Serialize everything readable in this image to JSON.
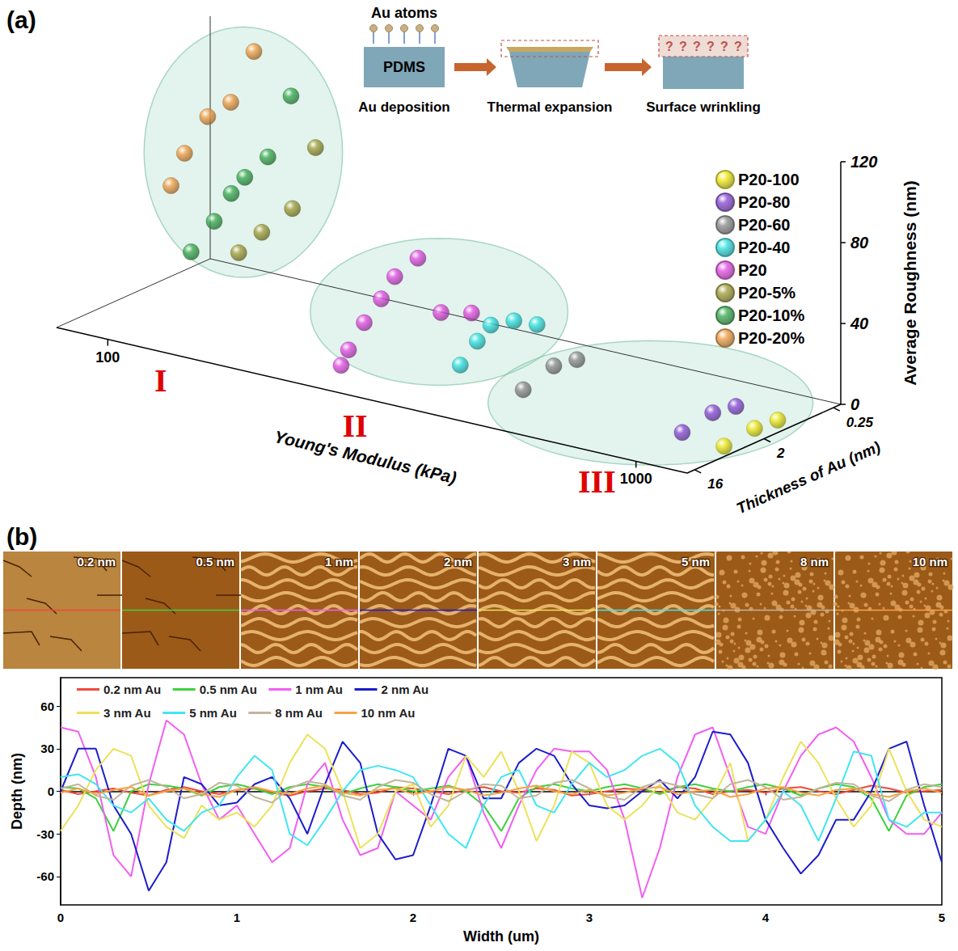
{
  "panel_labels": [
    "(a)",
    "(b)"
  ],
  "schematic": {
    "atoms_label": "Au atoms",
    "substrate_label": "PDMS",
    "steps": [
      "Au deposition",
      "Thermal expansion",
      "Surface wrinkling"
    ],
    "unknown_mark": "?"
  },
  "afm_images": {
    "labels": [
      "0.2 nm",
      "0.5 nm",
      "1 nm",
      "2 nm",
      "3 nm",
      "5 nm",
      "8 nm",
      "10 nm"
    ]
  },
  "chart_data": [
    {
      "type": "scatter3d",
      "x_label": "Young's Modulus (kPa)",
      "y_label": "Thickness of Au (nm)",
      "z_label": "Average Roughness (nm)",
      "log": [
        "x",
        "y"
      ],
      "xlim": [
        80,
        1250
      ],
      "xticks": [
        100,
        1000
      ],
      "ylim": [
        0.2,
        20
      ],
      "yticks": [
        0.25,
        2,
        16
      ],
      "zlim": [
        0,
        120
      ],
      "zticks": [
        0,
        40,
        80,
        120
      ],
      "marker": "sphere",
      "legend": "right",
      "series": [
        {
          "name": "P20-100",
          "color": "#f2ea1c",
          "x": [
            1200,
            1200,
            1200
          ],
          "y": [
            1,
            2,
            5
          ],
          "z": [
            3,
            4,
            2
          ]
        },
        {
          "name": "P20-80",
          "color": "#8e4fd8",
          "x": [
            1000,
            1000,
            1000
          ],
          "y": [
            1,
            2,
            5
          ],
          "z": [
            5,
            7,
            4
          ]
        },
        {
          "name": "P20-60",
          "color": "#8f8f8f",
          "x": [
            500,
            500,
            500
          ],
          "y": [
            1,
            2,
            5
          ],
          "z": [
            10,
            12,
            7
          ]
        },
        {
          "name": "P20-40",
          "color": "#36e3e3",
          "x": [
            380,
            380,
            380,
            380,
            380
          ],
          "y": [
            0.5,
            1,
            2,
            3,
            5
          ],
          "z": [
            15,
            22,
            25,
            20,
            12
          ]
        },
        {
          "name": "P20",
          "color": "#e651e6",
          "x": [
            250,
            250,
            250,
            250,
            250,
            250,
            250,
            250
          ],
          "y": [
            0.2,
            0.5,
            1,
            2,
            3,
            5,
            8,
            10
          ],
          "z": [
            3,
            10,
            42,
            38,
            30,
            22,
            12,
            6
          ]
        },
        {
          "name": "P20-5%",
          "color": "#a5a23f",
          "x": [
            160,
            160,
            160,
            160
          ],
          "y": [
            1,
            2,
            5,
            10
          ],
          "z": [
            85,
            60,
            55,
            50
          ]
        },
        {
          "name": "P20-10%",
          "color": "#3fae55",
          "x": [
            130,
            130,
            130,
            130,
            130,
            130
          ],
          "y": [
            0.5,
            1,
            2,
            3,
            5,
            10
          ],
          "z": [
            100,
            75,
            70,
            65,
            55,
            45
          ]
        },
        {
          "name": "P20-20%",
          "color": "#f3a24a",
          "x": [
            100,
            100,
            100,
            100,
            100
          ],
          "y": [
            0.25,
            0.5,
            1,
            2,
            3
          ],
          "z": [
            110,
            90,
            88,
            75,
            62
          ]
        }
      ],
      "annotations": [
        {
          "text": "I",
          "series": [
            "P20-20%",
            "P20-10%",
            "P20-5%"
          ]
        },
        {
          "text": "II",
          "series": [
            "P20",
            "P20-40"
          ]
        },
        {
          "text": "III",
          "series": [
            "P20-60",
            "P20-80",
            "P20-100"
          ]
        }
      ]
    },
    {
      "type": "line",
      "x_label": "Width (um)",
      "y_label": "Depth (nm)",
      "xlim": [
        0,
        5
      ],
      "xticks": [
        0,
        1,
        2,
        3,
        4,
        5
      ],
      "ylim": [
        -80,
        80
      ],
      "yticks": [
        -60,
        -30,
        0,
        30,
        60
      ],
      "grid": false,
      "legend": "upper left",
      "x": [
        0,
        0.1,
        0.2,
        0.3,
        0.4,
        0.5,
        0.6,
        0.7,
        0.8,
        0.9,
        1,
        1.1,
        1.2,
        1.3,
        1.4,
        1.5,
        1.6,
        1.7,
        1.8,
        1.9,
        2,
        2.1,
        2.2,
        2.3,
        2.4,
        2.5,
        2.6,
        2.7,
        2.8,
        2.9,
        3,
        3.1,
        3.2,
        3.3,
        3.4,
        3.5,
        3.6,
        3.7,
        3.8,
        3.9,
        4,
        4.1,
        4.2,
        4.3,
        4.4,
        4.5,
        4.6,
        4.7,
        4.8,
        4.9,
        5
      ],
      "series": [
        {
          "name": "0.2 nm Au",
          "color": "#f04a3a",
          "values": [
            1,
            -2,
            0,
            2,
            -1,
            -3,
            1,
            3,
            0,
            -2,
            1,
            2,
            -1,
            -3,
            0,
            2,
            1,
            -2,
            -1,
            3,
            2,
            0,
            -2,
            1,
            3,
            0,
            -1,
            2,
            1,
            -3,
            -2,
            0,
            2,
            1,
            -1,
            3,
            2,
            -2,
            0,
            1,
            -1,
            2,
            3,
            0,
            -2,
            1,
            4,
            2,
            -1,
            0,
            1
          ]
        },
        {
          "name": "0.5 nm Au",
          "color": "#3ed13e",
          "values": [
            3,
            2,
            -5,
            -28,
            0,
            5,
            4,
            2,
            -3,
            3,
            5,
            2,
            -2,
            3,
            5,
            3,
            -2,
            2,
            5,
            3,
            0,
            2,
            4,
            0,
            -10,
            -28,
            -5,
            3,
            5,
            2,
            0,
            3,
            5,
            2,
            -2,
            3,
            5,
            2,
            0,
            3,
            5,
            2,
            -3,
            2,
            5,
            3,
            -5,
            -28,
            -3,
            3,
            5
          ]
        },
        {
          "name": "1 nm Au",
          "color": "#f25ef2",
          "values": [
            45,
            42,
            10,
            -45,
            -60,
            5,
            50,
            40,
            5,
            -20,
            -10,
            -30,
            -50,
            -40,
            5,
            20,
            -20,
            -45,
            -40,
            0,
            -10,
            -20,
            10,
            25,
            -15,
            -40,
            -10,
            15,
            30,
            28,
            28,
            15,
            -20,
            -75,
            -40,
            10,
            40,
            45,
            10,
            -25,
            -30,
            0,
            25,
            40,
            45,
            35,
            10,
            -20,
            -30,
            -30,
            -15
          ]
        },
        {
          "name": "2 nm Au",
          "color": "#1c1ccc",
          "values": [
            0,
            30,
            30,
            -10,
            -30,
            -70,
            -50,
            10,
            5,
            -10,
            -8,
            5,
            10,
            -5,
            -30,
            5,
            35,
            20,
            -30,
            -48,
            -45,
            -10,
            30,
            25,
            -5,
            -5,
            20,
            30,
            25,
            5,
            -10,
            -12,
            -10,
            0,
            8,
            -5,
            10,
            42,
            40,
            20,
            -20,
            -40,
            -58,
            -45,
            -20,
            -20,
            0,
            30,
            35,
            -10,
            -50
          ]
        },
        {
          "name": "3 nm Au",
          "color": "#ece25a",
          "values": [
            -28,
            -10,
            15,
            30,
            25,
            -10,
            -25,
            -33,
            -10,
            -20,
            -15,
            -25,
            -10,
            20,
            40,
            30,
            0,
            -40,
            -30,
            0,
            5,
            -25,
            -10,
            25,
            10,
            28,
            0,
            -35,
            -10,
            28,
            20,
            -10,
            -20,
            -10,
            5,
            -15,
            -20,
            -5,
            20,
            -35,
            -20,
            10,
            35,
            20,
            -5,
            -25,
            -10,
            30,
            0,
            -20,
            -25
          ]
        },
        {
          "name": "5 nm Au",
          "color": "#40e6f2",
          "values": [
            10,
            12,
            5,
            -10,
            -15,
            -5,
            -20,
            -28,
            -15,
            -10,
            10,
            25,
            15,
            -30,
            -38,
            -20,
            0,
            15,
            18,
            15,
            10,
            -10,
            -30,
            -40,
            -10,
            10,
            15,
            -10,
            -15,
            5,
            20,
            10,
            15,
            25,
            30,
            20,
            -10,
            -25,
            -35,
            -35,
            -20,
            0,
            -10,
            -35,
            -5,
            28,
            25,
            -20,
            -25,
            -15,
            -15
          ]
        },
        {
          "name": "8 nm Au",
          "color": "#c2b59b",
          "values": [
            2,
            5,
            -3,
            -6,
            4,
            8,
            3,
            -5,
            -2,
            6,
            4,
            -4,
            -8,
            2,
            7,
            5,
            -3,
            -6,
            3,
            8,
            6,
            -2,
            -7,
            0,
            5,
            4,
            -5,
            -3,
            6,
            8,
            2,
            -4,
            -6,
            3,
            7,
            4,
            -2,
            -5,
            5,
            8,
            3,
            -6,
            -4,
            2,
            6,
            5,
            -3,
            -7,
            1,
            5,
            3
          ]
        },
        {
          "name": "10 nm Au",
          "color": "#f5a445",
          "values": [
            -1,
            2,
            -2,
            1,
            3,
            -3,
            0,
            2,
            -2,
            -4,
            1,
            3,
            0,
            -2,
            2,
            4,
            -1,
            -3,
            1,
            2,
            -2,
            0,
            3,
            1,
            -3,
            -1,
            2,
            4,
            0,
            -2,
            1,
            -3,
            -1,
            2,
            3,
            -2,
            0,
            1,
            -4,
            -2,
            2,
            3,
            -1,
            -3,
            1,
            2,
            -2,
            -4,
            0,
            2,
            -1
          ]
        }
      ]
    }
  ]
}
